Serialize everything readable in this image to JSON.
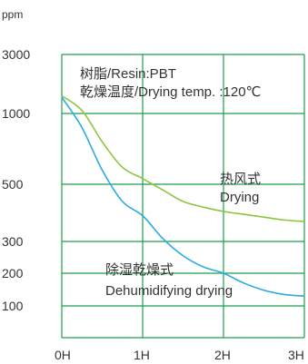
{
  "chart_data": {
    "type": "line",
    "ylabel": "ppm",
    "x_ticks": [
      "0H",
      "1H",
      "2H",
      "3H"
    ],
    "y_ticks": [
      "3000",
      "1000",
      "500",
      "300",
      "200",
      "100"
    ],
    "y_tick_values": [
      3000,
      1000,
      500,
      300,
      200,
      100
    ],
    "y_scale": "nonuniform-log",
    "xlim": [
      0,
      3
    ],
    "annotation_lines": [
      "树脂/Resin:PBT",
      "乾燥温度/Drying temp. :120℃"
    ],
    "grid": true,
    "series": [
      {
        "name_lines": [
          "热风式",
          "Drying"
        ],
        "color": "#8cc63f",
        "x": [
          0,
          0.25,
          0.5,
          0.75,
          1.0,
          1.25,
          1.5,
          1.75,
          2.0,
          2.25,
          2.5,
          2.75,
          3.0
        ],
        "y": [
          1600,
          1100,
          800,
          620,
          540,
          480,
          440,
          420,
          405,
          395,
          385,
          375,
          370
        ]
      },
      {
        "name_lines": [
          "除湿乾燥式",
          "Dehumidifying drying"
        ],
        "color": "#29abe2",
        "x": [
          0,
          0.25,
          0.5,
          0.75,
          1.0,
          1.25,
          1.5,
          1.75,
          2.0,
          2.25,
          2.5,
          2.75,
          3.0
        ],
        "y": [
          1550,
          900,
          600,
          440,
          390,
          310,
          255,
          220,
          200,
          170,
          148,
          135,
          130
        ]
      }
    ]
  }
}
